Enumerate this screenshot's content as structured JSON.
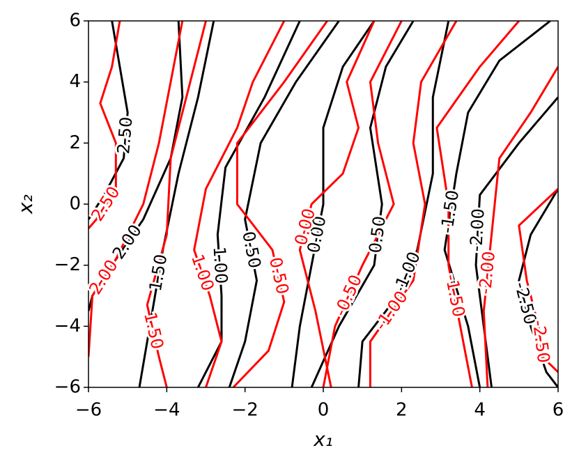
{
  "chart_data": {
    "type": "contour",
    "xlabel": "x₁",
    "ylabel": "x₂",
    "xlim": [
      -6,
      6
    ],
    "ylim": [
      -6,
      6
    ],
    "xticks": [
      {
        "value": -6,
        "label": "−6"
      },
      {
        "value": -4,
        "label": "−4"
      },
      {
        "value": -2,
        "label": "−2"
      },
      0,
      2,
      4,
      6
    ],
    "yticks": [
      {
        "value": -6,
        "label": "−6"
      },
      {
        "value": -4,
        "label": "−4"
      },
      {
        "value": -2,
        "label": "−2"
      },
      0,
      2,
      4,
      6
    ],
    "series": [
      {
        "color": "#000000",
        "lines": [
          {
            "level": {
              "value": 2.5,
              "label": "2.50"
            },
            "x": [
              -5.4,
              -5.2,
              -5.0,
              -5.1,
              -5.6,
              -6.0
            ],
            "y": [
              6,
              4.5,
              3,
              1.5,
              0.3,
              -0.5
            ]
          },
          {
            "level": {
              "value": 2.0,
              "label": "2.00"
            },
            "x": [
              -3.7,
              -3.6,
              -3.9,
              -4.6,
              -5.4,
              -5.9,
              -6
            ],
            "y": [
              6,
              3.5,
              1.5,
              -0.5,
              -2,
              -3,
              -3.5
            ]
          },
          {
            "level": {
              "value": 1.5,
              "label": "1.50"
            },
            "x": [
              -2.8,
              -3.2,
              -3.7,
              -4.1,
              -4.3,
              -4.5,
              -4.7
            ],
            "y": [
              6,
              3.5,
              1,
              -1.5,
              -3,
              -4.5,
              -6
            ]
          },
          {
            "level": {
              "value": 1.0,
              "label": "1.00"
            },
            "x": [
              -0.6,
              -1.5,
              -2.5,
              -2.7,
              -2.6,
              -2.6,
              -3.2
            ],
            "y": [
              6,
              3.5,
              1.2,
              -1,
              -3,
              -4.5,
              -6
            ]
          },
          {
            "level": {
              "value": 0.5,
              "label": "0.50"
            },
            "x": [
              0.4,
              -0.7,
              -1.6,
              -2.0,
              -1.7,
              -2.0,
              -2.4
            ],
            "y": [
              6,
              4,
              2,
              -0.5,
              -2.5,
              -4.5,
              -6
            ]
          },
          {
            "level": {
              "value": 0.0,
              "label": "0.00"
            },
            "x": [
              1.3,
              0.5,
              0.0,
              0.0,
              -0.3,
              -0.6,
              -0.8
            ],
            "y": [
              6,
              4.5,
              2.5,
              0,
              -2,
              -4,
              -6
            ]
          },
          {
            "level": {
              "value": 0.5,
              "label": "0.50"
            },
            "x": [
              2.3,
              1.6,
              1.2,
              1.5,
              1.3,
              0.4,
              -0.3
            ],
            "y": [
              6,
              4.5,
              2.5,
              0,
              -2,
              -4,
              -6
            ]
          },
          {
            "level": {
              "value": -1.0,
              "label": "-1.00"
            },
            "x": [
              3.2,
              2.8,
              2.8,
              2.4,
              1.9,
              1.0,
              0.9
            ],
            "y": [
              6,
              3.5,
              1,
              -1.5,
              -3,
              -4.5,
              -6
            ]
          },
          {
            "level": {
              "value": -1.5,
              "label": "-1.50"
            },
            "x": [
              5.8,
              4.5,
              3.7,
              3.4,
              3.1,
              3.7,
              4.0
            ],
            "y": [
              6,
              4.7,
              3,
              1,
              -1.5,
              -4,
              -6
            ]
          },
          {
            "level": {
              "value": -2.0,
              "label": "-2.00"
            },
            "x": [
              6,
              5.0,
              4.0,
              3.9,
              4.1,
              4.3
            ],
            "y": [
              3.5,
              2,
              0.3,
              -2,
              -4,
              -6
            ]
          },
          {
            "level": {
              "value": -2.5,
              "label": "-2.50"
            },
            "x": [
              6,
              5.3,
              5.0,
              5.3,
              5.7,
              6
            ],
            "y": [
              0.5,
              -1,
              -2.5,
              -4,
              -5.5,
              -6
            ]
          }
        ]
      },
      {
        "color": "#ff0000",
        "lines": [
          {
            "level": {
              "value": 2.5,
              "label": "2.50"
            },
            "x": [
              -5.2,
              -5.4,
              -5.7,
              -5.3,
              -5.3,
              -5.8,
              -6
            ],
            "y": [
              6,
              4.5,
              3.3,
              2,
              0.5,
              -0.5,
              -0.8
            ]
          },
          {
            "level": {
              "value": 2.0,
              "label": "2.00"
            },
            "x": [
              -3.6,
              -3.9,
              -4.2,
              -4.6,
              -5.3,
              -5.9,
              -6
            ],
            "y": [
              6,
              4,
              2,
              0,
              -1.8,
              -3,
              -5
            ]
          },
          {
            "level": {
              "value": 1.5,
              "label": "1.50"
            },
            "x": [
              -3.0,
              -3.4,
              -3.9,
              -4.0,
              -4.5,
              -4.2,
              -4.0
            ],
            "y": [
              6,
              4,
              1.5,
              -1,
              -3.3,
              -5,
              -6
            ]
          },
          {
            "level": {
              "value": 1.0,
              "label": "1.00"
            },
            "x": [
              -1.0,
              -1.8,
              -2.2,
              -3.0,
              -3.3,
              -2.9,
              -2.6,
              -3.0
            ],
            "y": [
              6,
              4,
              2.5,
              0.5,
              -1.5,
              -3,
              -4.5,
              -6
            ]
          },
          {
            "level": {
              "value": 0.5,
              "label": "0.50"
            },
            "x": [
              0.1,
              -1.0,
              -2.2,
              -2.2,
              -1.3,
              -1.0,
              -1.4,
              -2.3
            ],
            "y": [
              6,
              4,
              2,
              0,
              -1.5,
              -3.2,
              -4.8,
              -6
            ]
          },
          {
            "level": {
              "value": 0.0,
              "label": "0.00"
            },
            "x": [
              1.3,
              0.6,
              0.9,
              0.5,
              -0.3,
              -0.6,
              -0.2,
              0.2
            ],
            "y": [
              6,
              4,
              2.5,
              1,
              0,
              -1.5,
              -3.5,
              -6
            ]
          },
          {
            "level": {
              "value": -0.5,
              "label": "-0.50"
            },
            "x": [
              2.0,
              1.2,
              1.4,
              1.8,
              1.0,
              0.3,
              0.0
            ],
            "y": [
              6,
              4,
              2,
              0,
              -2,
              -4,
              -6
            ]
          },
          {
            "level": {
              "value": -1.0,
              "label": "-1.00"
            },
            "x": [
              3.4,
              2.5,
              2.3,
              2.6,
              2.3,
              1.2,
              1.2
            ],
            "y": [
              6,
              4,
              2,
              0,
              -2.5,
              -4.5,
              -6
            ]
          },
          {
            "level": {
              "value": -1.5,
              "label": "-1.50"
            },
            "x": [
              5.0,
              4.0,
              2.9,
              3.2,
              3.2,
              3.5,
              3.8
            ],
            "y": [
              6,
              4.5,
              2.5,
              0,
              -2,
              -4,
              -6
            ]
          },
          {
            "level": {
              "value": -2.0,
              "label": "-2.00"
            },
            "x": [
              6,
              5.3,
              4.5,
              4.3,
              4.1,
              4.2
            ],
            "y": [
              4.5,
              3,
              1.5,
              -1,
              -3.5,
              -6
            ]
          },
          {
            "level": {
              "value": -2.5,
              "label": "-2.50"
            },
            "x": [
              6,
              5.0,
              5.2,
              5.5,
              5.6,
              6
            ],
            "y": [
              0.5,
              -0.7,
              -2.5,
              -4,
              -5,
              -5.5
            ]
          }
        ]
      }
    ]
  }
}
